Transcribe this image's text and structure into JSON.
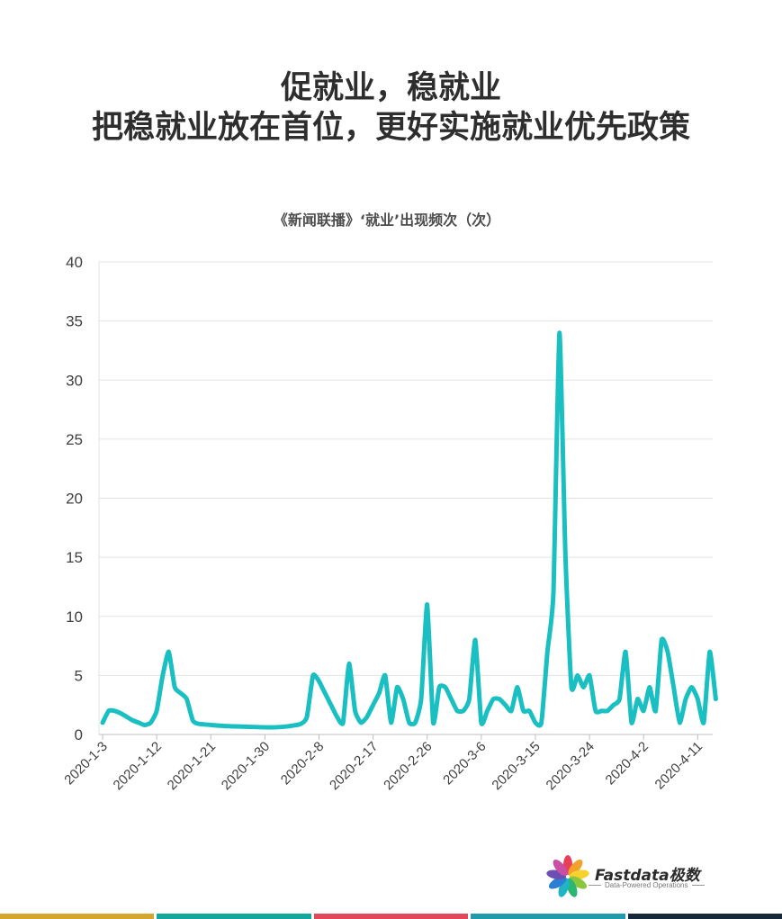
{
  "header": {
    "title_line1": "促就业，稳就业",
    "title_line2": "把稳就业放在首位，更好实施就业优先政策"
  },
  "logo": {
    "name": "Fastdata极数",
    "tagline": "Data-Powered Operations",
    "petal_colors": [
      "#e83e5a",
      "#f2a12b",
      "#f7d22f",
      "#8cc63f",
      "#2bb673",
      "#1fb5c4",
      "#2a7fd4",
      "#6d4fb3",
      "#c94fa5"
    ]
  },
  "footer_bar_colors": [
    "#d4a72c",
    "#14a89c",
    "#e2485a",
    "#1f9bab",
    "#17283a"
  ],
  "chart_data": {
    "type": "line",
    "title": "《新闻联播》‘就业’出现频次（次）",
    "xlabel": "",
    "ylabel": "",
    "ylim": [
      0,
      40
    ],
    "yticks": [
      0,
      5,
      10,
      15,
      20,
      25,
      30,
      35,
      40
    ],
    "grid": true,
    "line_color": "#19bfc1",
    "start_date": "2020-1-3",
    "xtick_labels": [
      "2020-1-3",
      "2020-1-12",
      "2020-1-21",
      "2020-1-30",
      "2020-2-8",
      "2020-2-17",
      "2020-2-26",
      "2020-3-6",
      "2020-3-15",
      "2020-3-24",
      "2020-4-2",
      "2020-4-11"
    ],
    "series": [
      {
        "points": [
          [
            "2020-1-3",
            1
          ],
          [
            "2020-1-4",
            2
          ],
          [
            "2020-1-5",
            2
          ],
          [
            "2020-1-6",
            1.8
          ],
          [
            "2020-1-7",
            1.5
          ],
          [
            "2020-1-8",
            1.2
          ],
          [
            "2020-1-9",
            1
          ],
          [
            "2020-1-10",
            0.8
          ],
          [
            "2020-1-11",
            1
          ],
          [
            "2020-1-12",
            2
          ],
          [
            "2020-1-13",
            5
          ],
          [
            "2020-1-14",
            7
          ],
          [
            "2020-1-15",
            4
          ],
          [
            "2020-1-16",
            3.5
          ],
          [
            "2020-1-17",
            3
          ],
          [
            "2020-1-18",
            1.2
          ],
          [
            "2020-1-19",
            0.9
          ],
          [
            "2020-1-24",
            0.7
          ],
          [
            "2020-1-31",
            0.6
          ],
          [
            "2020-2-3",
            0.7
          ],
          [
            "2020-2-5",
            0.9
          ],
          [
            "2020-2-6",
            1.5
          ],
          [
            "2020-2-7",
            5
          ],
          [
            "2020-2-8",
            4.5
          ],
          [
            "2020-2-9",
            3.5
          ],
          [
            "2020-2-10",
            2.5
          ],
          [
            "2020-2-11",
            1.5
          ],
          [
            "2020-2-12",
            1
          ],
          [
            "2020-2-13",
            6
          ],
          [
            "2020-2-14",
            2
          ],
          [
            "2020-2-15",
            1
          ],
          [
            "2020-2-16",
            1.5
          ],
          [
            "2020-2-17",
            2.5
          ],
          [
            "2020-2-18",
            3.5
          ],
          [
            "2020-2-19",
            5
          ],
          [
            "2020-2-20",
            1
          ],
          [
            "2020-2-21",
            4
          ],
          [
            "2020-2-22",
            3
          ],
          [
            "2020-2-23",
            1
          ],
          [
            "2020-2-24",
            1
          ],
          [
            "2020-2-25",
            3
          ],
          [
            "2020-2-26",
            11
          ],
          [
            "2020-2-27",
            1
          ],
          [
            "2020-2-28",
            4
          ],
          [
            "2020-2-29",
            4
          ],
          [
            "2020-3-1",
            3
          ],
          [
            "2020-3-2",
            2
          ],
          [
            "2020-3-3",
            2
          ],
          [
            "2020-3-4",
            3
          ],
          [
            "2020-3-5",
            8
          ],
          [
            "2020-3-6",
            1
          ],
          [
            "2020-3-7",
            2
          ],
          [
            "2020-3-8",
            3
          ],
          [
            "2020-3-9",
            3
          ],
          [
            "2020-3-10",
            2.5
          ],
          [
            "2020-3-11",
            2
          ],
          [
            "2020-3-12",
            4
          ],
          [
            "2020-3-13",
            2
          ],
          [
            "2020-3-14",
            2
          ],
          [
            "2020-3-15",
            1
          ],
          [
            "2020-3-16",
            1
          ],
          [
            "2020-3-17",
            7
          ],
          [
            "2020-3-18",
            12
          ],
          [
            "2020-3-19",
            34
          ],
          [
            "2020-3-20",
            15
          ],
          [
            "2020-3-21",
            4
          ],
          [
            "2020-3-22",
            5
          ],
          [
            "2020-3-23",
            4
          ],
          [
            "2020-3-24",
            5
          ],
          [
            "2020-3-25",
            2
          ],
          [
            "2020-3-26",
            2
          ],
          [
            "2020-3-27",
            2
          ],
          [
            "2020-3-28",
            2.5
          ],
          [
            "2020-3-29",
            3
          ],
          [
            "2020-3-30",
            7
          ],
          [
            "2020-3-31",
            1
          ],
          [
            "2020-4-1",
            3
          ],
          [
            "2020-4-2",
            2
          ],
          [
            "2020-4-3",
            4
          ],
          [
            "2020-4-4",
            2
          ],
          [
            "2020-4-5",
            8
          ],
          [
            "2020-4-6",
            7
          ],
          [
            "2020-4-7",
            4
          ],
          [
            "2020-4-8",
            1
          ],
          [
            "2020-4-9",
            3
          ],
          [
            "2020-4-10",
            4
          ],
          [
            "2020-4-11",
            3
          ],
          [
            "2020-4-12",
            1
          ],
          [
            "2020-4-13",
            7
          ],
          [
            "2020-4-14",
            3
          ]
        ]
      }
    ]
  }
}
